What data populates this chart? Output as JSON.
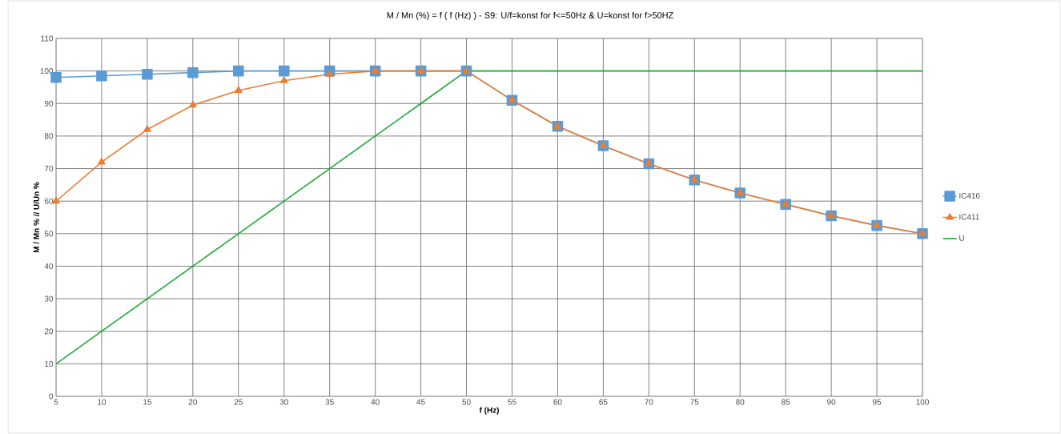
{
  "chart_data": {
    "type": "line",
    "title": "M / Mn (%) = f ( f (Hz) ) - S9: U/f=konst for f<=50Hz & U=konst for f>50HZ",
    "xlabel": "f (Hz)",
    "ylabel": "M / Mn % // U/Un %",
    "x": [
      5,
      10,
      15,
      20,
      25,
      30,
      35,
      40,
      45,
      50,
      55,
      60,
      65,
      70,
      75,
      80,
      85,
      90,
      95,
      100
    ],
    "series": [
      {
        "name": "IC416",
        "color": "#5b9bd5",
        "marker": "square",
        "values": [
          98,
          98.5,
          99,
          99.5,
          100,
          100,
          100,
          100,
          100,
          100,
          91,
          83,
          77,
          71.5,
          66.5,
          62.5,
          59,
          55.5,
          52.5,
          50
        ]
      },
      {
        "name": "IC411",
        "color": "#ed7d31",
        "marker": "triangle",
        "values": [
          60,
          72,
          82,
          89.5,
          94,
          97,
          99,
          100,
          100,
          100,
          91,
          83,
          77,
          71.5,
          66.5,
          62.5,
          59,
          55.5,
          52.5,
          50
        ]
      },
      {
        "name": "U",
        "color": "#1aa832",
        "marker": "none",
        "values": [
          10,
          20,
          30,
          40,
          50,
          60,
          70,
          80,
          90,
          100,
          100,
          100,
          100,
          100,
          100,
          100,
          100,
          100,
          100,
          100
        ]
      }
    ],
    "xlim": [
      5,
      100
    ],
    "xticks": [
      5,
      10,
      15,
      20,
      25,
      30,
      35,
      40,
      45,
      50,
      55,
      60,
      65,
      70,
      75,
      80,
      85,
      90,
      95,
      100
    ],
    "ylim": [
      0,
      110
    ],
    "yticks": [
      0,
      10,
      20,
      30,
      40,
      50,
      60,
      70,
      80,
      90,
      100,
      110
    ],
    "grid": true,
    "legend": "right",
    "line_style": "solid"
  }
}
